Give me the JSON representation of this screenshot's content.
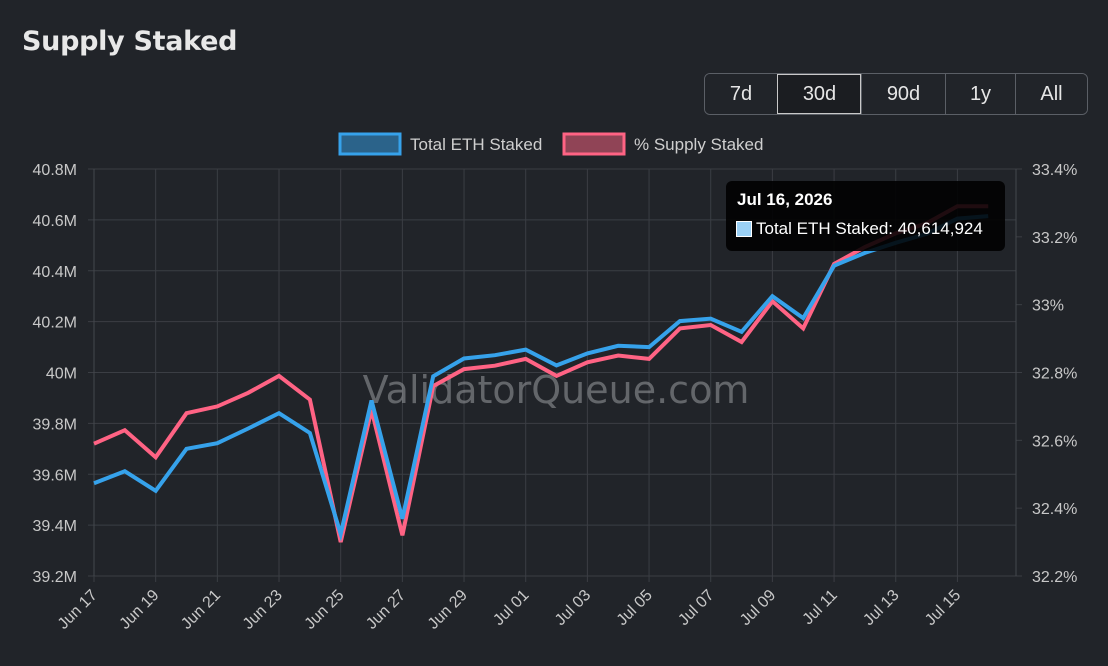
{
  "page": {
    "title": "Supply Staked"
  },
  "range_selector": {
    "options": [
      "7d",
      "30d",
      "90d",
      "1y",
      "All"
    ],
    "active": "30d"
  },
  "watermark": "ValidatorQueue.com",
  "tooltip": {
    "date": "Jul 16, 2026",
    "label": "Total ETH Staked: 40,614,924",
    "swatch_color": "#9ad0f5"
  },
  "chart_data": {
    "type": "line",
    "grid": true,
    "legend": {
      "placement": "top-center",
      "entries": [
        "Total ETH Staked",
        "% Supply Staked"
      ]
    },
    "x": [
      "Jun 17",
      "Jun 18",
      "Jun 19",
      "Jun 20",
      "Jun 21",
      "Jun 22",
      "Jun 23",
      "Jun 24",
      "Jun 25",
      "Jun 26",
      "Jun 27",
      "Jun 28",
      "Jun 29",
      "Jun 30",
      "Jul 01",
      "Jul 02",
      "Jul 03",
      "Jul 04",
      "Jul 05",
      "Jul 06",
      "Jul 07",
      "Jul 08",
      "Jul 09",
      "Jul 10",
      "Jul 11",
      "Jul 12",
      "Jul 13",
      "Jul 14",
      "Jul 15",
      "Jul 16"
    ],
    "x_tick_labels": [
      "Jun 17",
      "Jun 19",
      "Jun 21",
      "Jun 23",
      "Jun 25",
      "Jun 27",
      "Jun 29",
      "Jul 01",
      "Jul 03",
      "Jul 05",
      "Jul 07",
      "Jul 09",
      "Jul 11",
      "Jul 13",
      "Jul 15"
    ],
    "y_left": {
      "min": 39200000,
      "max": 40800000,
      "ticks": [
        "39.2M",
        "39.4M",
        "39.6M",
        "39.8M",
        "40M",
        "40.2M",
        "40.4M",
        "40.6M",
        "40.8M"
      ]
    },
    "y_right": {
      "min": 32.2,
      "max": 33.4,
      "ticks": [
        "32.2%",
        "32.4%",
        "32.6%",
        "32.8%",
        "33%",
        "33.2%",
        "33.4%"
      ]
    },
    "series": [
      {
        "name": "Total ETH Staked",
        "axis": "left",
        "color": "#36a2eb",
        "values": [
          39565000,
          39612000,
          39535000,
          39700000,
          39722000,
          39780000,
          39840000,
          39762000,
          39365000,
          39890000,
          39425000,
          39985000,
          40055000,
          40068000,
          40090000,
          40028000,
          40075000,
          40105000,
          40100000,
          40202000,
          40212000,
          40160000,
          40300000,
          40214000,
          40420000,
          40470000,
          40510000,
          40545000,
          40605000,
          40614924
        ]
      },
      {
        "name": "% Supply Staked",
        "axis": "right",
        "color": "#ff6384",
        "values": [
          32.59,
          32.63,
          32.55,
          32.68,
          32.7,
          32.74,
          32.79,
          32.72,
          32.3,
          32.69,
          32.32,
          32.76,
          32.81,
          32.82,
          32.84,
          32.79,
          32.83,
          32.85,
          32.84,
          32.93,
          32.94,
          32.89,
          33.01,
          32.93,
          33.12,
          33.17,
          33.21,
          33.24,
          33.29,
          33.29
        ]
      }
    ]
  }
}
